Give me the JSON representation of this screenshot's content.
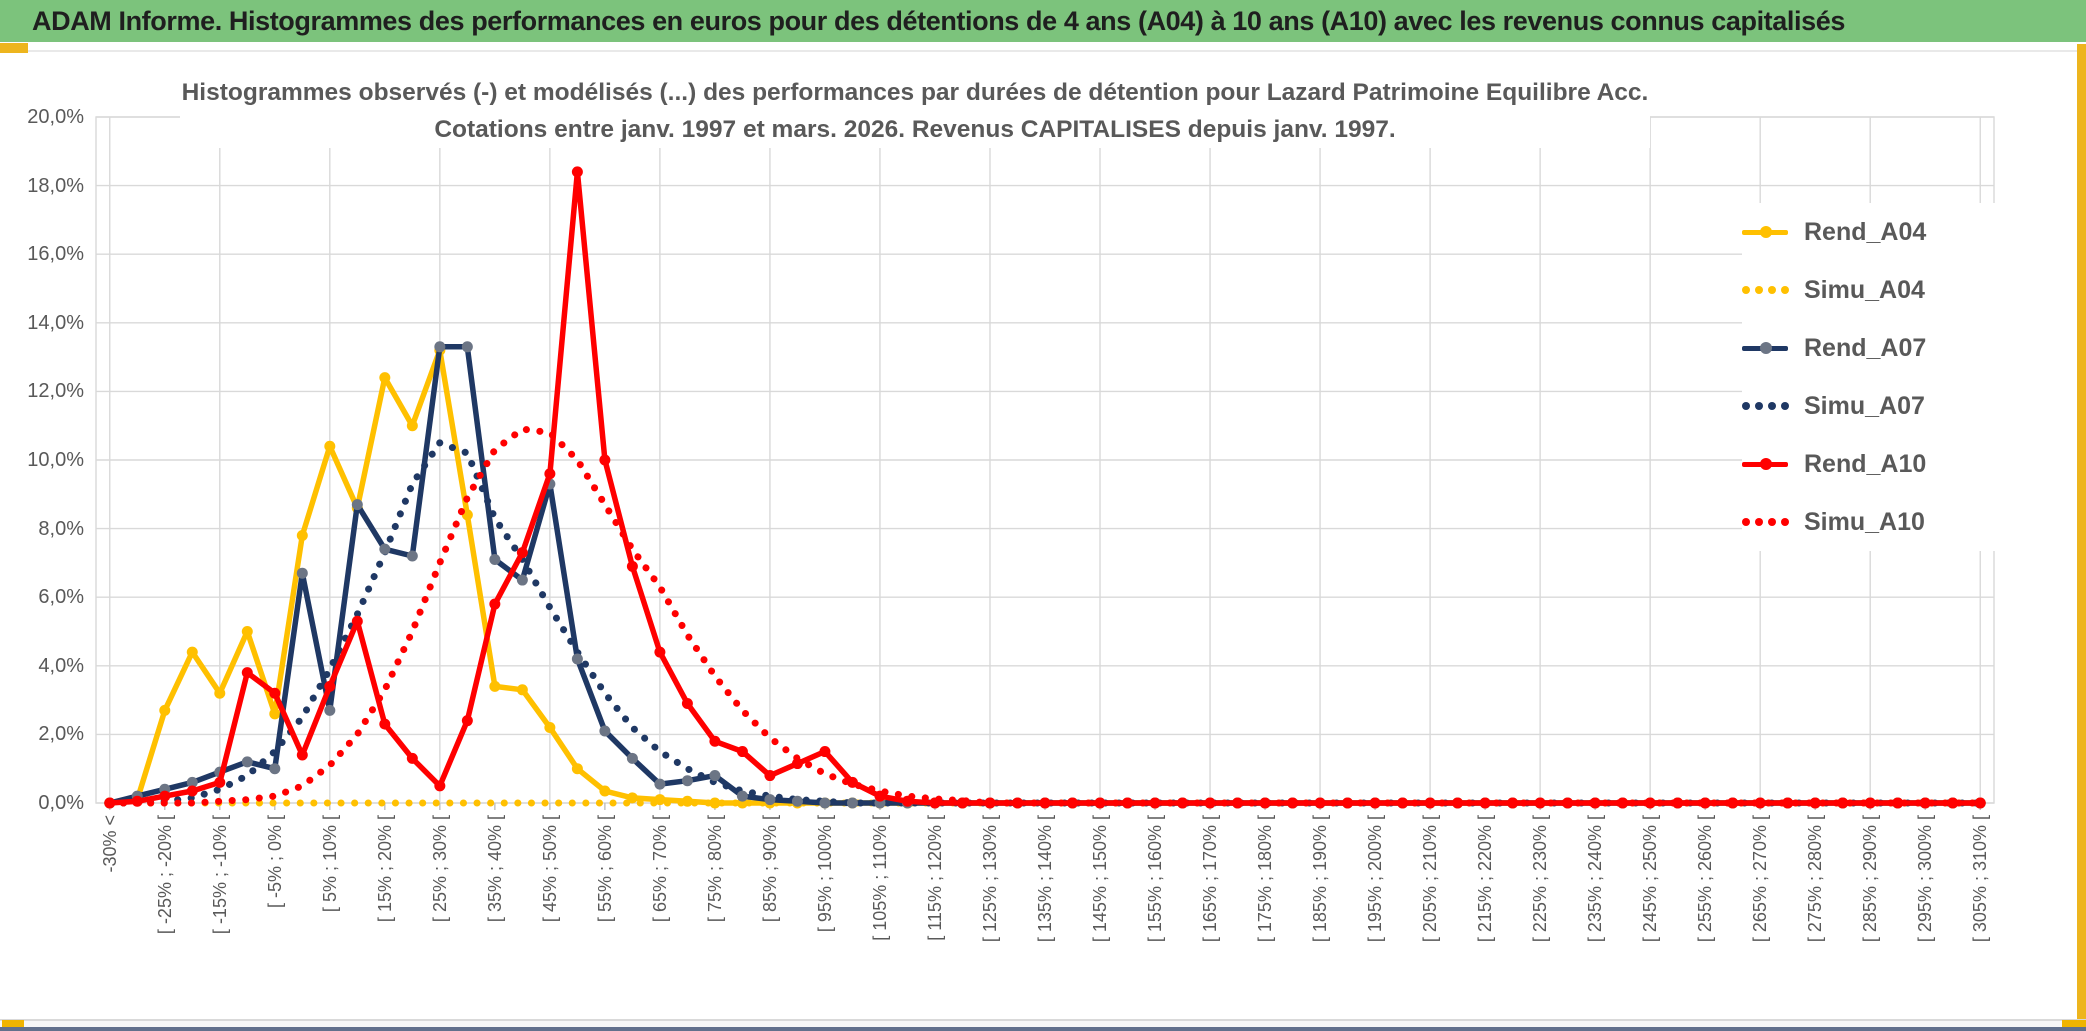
{
  "header": {
    "title": "ADAM Informe. Histogrammes des performances en euros pour des détentions de 4 ans (A04) à 10 ans (A10) avec les revenus connus capitalisés"
  },
  "chart_data": {
    "type": "line",
    "title": "Histogrammes observés (-) et modélisés (...) des performances par durées de détention pour Lazard Patrimoine Equilibre Acc.",
    "subtitle": "Cotations entre janv. 1997 et mars. 2026. Revenus CAPITALISES depuis janv. 1997.",
    "ylabel": "",
    "xlabel": "",
    "ylim": [
      0,
      20
    ],
    "y_axis": {
      "min": 0,
      "max": 20,
      "step": 2,
      "tick_labels": [
        "0,0%",
        "2,0%",
        "4,0%",
        "6,0%",
        "8,0%",
        "10,0%",
        "12,0%",
        "14,0%",
        "16,0%",
        "18,0%",
        "20,0%"
      ]
    },
    "x_axis": {
      "n_bins": 69,
      "label_every": 2,
      "grid_every": 4,
      "labels": [
        "-30% <",
        "[ -25% ; -20% [",
        "[ -15% ; -10% [",
        "[ -5% ; 0% [",
        "[ 5% ; 10% [",
        "[ 15% ; 20% [",
        "[ 25% ; 30% [",
        "[ 35% ; 40% [",
        "[ 45% ; 50% [",
        "[ 55% ; 60% [",
        "[ 65% ; 70% [",
        "[ 75% ; 80% [",
        "[ 85% ; 90% [",
        "[ 95% ; 100% [",
        "[ 105% ; 110% [",
        "[ 115% ; 120% [",
        "[ 125% ; 130% [",
        "[ 135% ; 140% [",
        "[ 145% ; 150% [",
        "[ 155% ; 160% [",
        "[ 165% ; 170% [",
        "[ 175% ; 180% [",
        "[ 185% ; 190% [",
        "[ 195% ; 200% [",
        "[ 205% ; 210% [",
        "[ 215% ; 220% [",
        "[ 225% ; 230% [",
        "[ 235% ; 240% [",
        "[ 245% ; 250% [",
        "[ 255% ; 260% [",
        "[ 265% ; 270% [",
        "[ 275% ; 280% [",
        "[ 285% ; 290% [",
        "[ 295% ; 300% [",
        "[ 305% ; 310% ["
      ]
    },
    "grid": true,
    "legend_position": "right-inside",
    "colors": {
      "A04": "#FFC000",
      "A07": "#1F3864",
      "A10": "#FF0000",
      "A07_marker": "#6C7585",
      "gridline": "#D9D9D9",
      "text_gray": "#595959"
    },
    "series": [
      {
        "name": "Simu_A04",
        "color": "#FFC000",
        "style": "dotted",
        "values": [
          0,
          0,
          0,
          0,
          0,
          0,
          0,
          0,
          0,
          0,
          0,
          0,
          0,
          0,
          0,
          0,
          0,
          0,
          0,
          0,
          0,
          0,
          0,
          0,
          0,
          0,
          0,
          0,
          0,
          0,
          0,
          0,
          0,
          0,
          0,
          0,
          0,
          0,
          0,
          0,
          0,
          0,
          0,
          0,
          0,
          0,
          0,
          0,
          0,
          0,
          0,
          0,
          0,
          0,
          0,
          0,
          0,
          0,
          0,
          0,
          0,
          0,
          0,
          0,
          0,
          0,
          0,
          0,
          0
        ]
      },
      {
        "name": "Rend_A04",
        "color": "#FFC000",
        "style": "solid",
        "marker_color": "#FFC000",
        "values": [
          0,
          0.1,
          2.7,
          4.4,
          3.2,
          5,
          2.6,
          7.8,
          10.4,
          8.6,
          12.4,
          11,
          13.2,
          8.4,
          3.4,
          3.3,
          2.2,
          1,
          0.35,
          0.15,
          0.1,
          0.05
        ]
      },
      {
        "name": "Simu_A07",
        "color": "#1F3864",
        "style": "dotted",
        "values": [
          0,
          0,
          0.05,
          0.15,
          0.4,
          0.8,
          1.5,
          2.5,
          3.9,
          5.5,
          7.3,
          9.3,
          10.5,
          10.2,
          8.3,
          7.1,
          5.7,
          4.4,
          3.2,
          2.2,
          1.5,
          1,
          0.6,
          0.35,
          0.2,
          0.1,
          0.05
        ]
      },
      {
        "name": "Rend_A07",
        "color": "#1F3864",
        "style": "solid",
        "marker_color": "#6C7585",
        "values": [
          0,
          0.2,
          0.4,
          0.6,
          0.9,
          1.2,
          1,
          6.7,
          2.7,
          8.7,
          7.4,
          7.2,
          13.3,
          13.3,
          7.1,
          6.5,
          9.3,
          4.2,
          2.1,
          1.3,
          0.55,
          0.65,
          0.8,
          0.2,
          0.1,
          0.05
        ]
      },
      {
        "name": "Simu_A10",
        "color": "#FF0000",
        "style": "dotted",
        "values": [
          0,
          0,
          0,
          0,
          0.05,
          0.1,
          0.2,
          0.5,
          1.1,
          2,
          3.3,
          5,
          7,
          8.9,
          10.3,
          10.9,
          10.8,
          10,
          8.7,
          7.4,
          6.3,
          4.9,
          3.7,
          2.7,
          1.9,
          1.3,
          0.85,
          0.55,
          0.35,
          0.2,
          0.12,
          0.07
        ]
      },
      {
        "name": "Rend_A10",
        "color": "#FF0000",
        "style": "solid",
        "marker_color": "#FF0000",
        "values": [
          0,
          0.05,
          0.2,
          0.35,
          0.6,
          3.8,
          3.2,
          1.4,
          3.4,
          5.3,
          2.3,
          1.3,
          0.5,
          2.4,
          5.8,
          7.3,
          9.6,
          18.4,
          10,
          6.9,
          4.4,
          2.9,
          1.8,
          1.5,
          0.8,
          1.15,
          1.5,
          0.6,
          0.2,
          0.05
        ]
      }
    ],
    "legend": [
      {
        "label": "Rend_A04",
        "style": "solid",
        "color": "#FFC000",
        "dot": "#FFC000"
      },
      {
        "label": "Simu_A04",
        "style": "dotted",
        "color": "#FFC000"
      },
      {
        "label": "Rend_A07",
        "style": "solid",
        "color": "#1F3864",
        "dot": "#6C7585"
      },
      {
        "label": "Simu_A07",
        "style": "dotted",
        "color": "#1F3864"
      },
      {
        "label": "Rend_A10",
        "style": "solid",
        "color": "#FF0000",
        "dot": "#FF0000"
      },
      {
        "label": "Simu_A10",
        "style": "dotted",
        "color": "#FF0000"
      }
    ]
  }
}
